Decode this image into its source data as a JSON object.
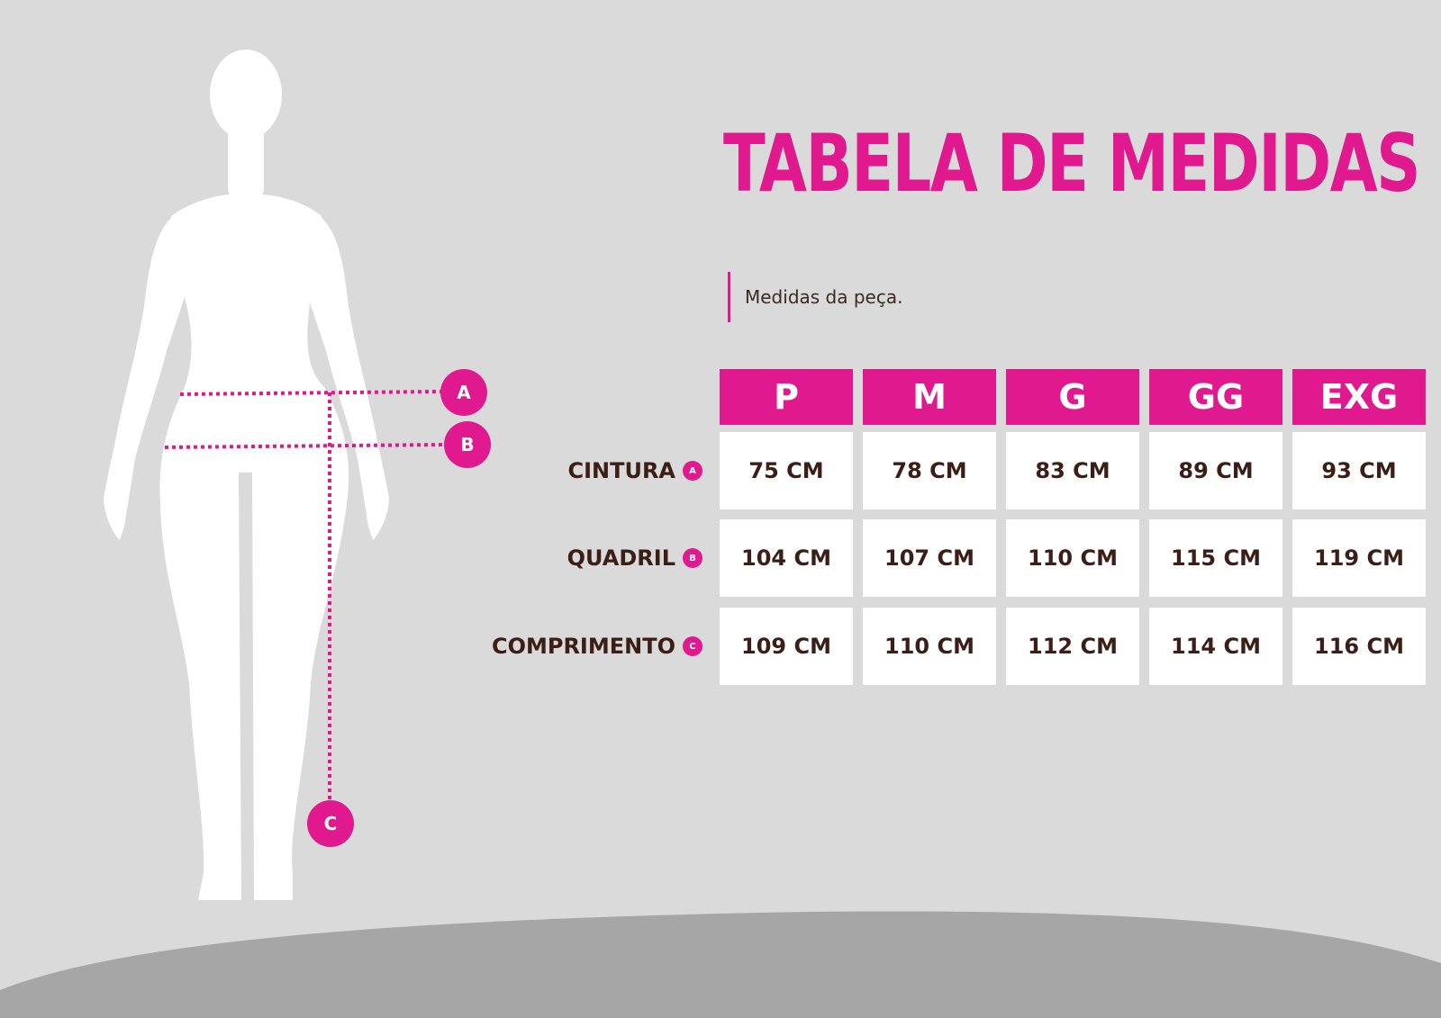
{
  "title": "TABELA DE MEDIDAS",
  "subtitle": "Medidas da peça.",
  "figure_markers": [
    "A",
    "B",
    "C"
  ],
  "table": {
    "columns": [
      "P",
      "M",
      "G",
      "GG",
      "EXG"
    ],
    "rows": [
      {
        "label": "CINTURA",
        "badge": "A",
        "values": [
          "75 CM",
          "78 CM",
          "83 CM",
          "89 CM",
          "93 CM"
        ]
      },
      {
        "label": "QUADRIL",
        "badge": "B",
        "values": [
          "104 CM",
          "107 CM",
          "110 CM",
          "115 CM",
          "119 CM"
        ]
      },
      {
        "label": "COMPRIMENTO",
        "badge": "C",
        "values": [
          "109 CM",
          "110 CM",
          "112 CM",
          "114 CM",
          "116 CM"
        ]
      }
    ]
  },
  "colors": {
    "accent": "#e0198f",
    "background": "#dadada",
    "ground": "#a6a6a6",
    "text": "#3b1e16"
  }
}
